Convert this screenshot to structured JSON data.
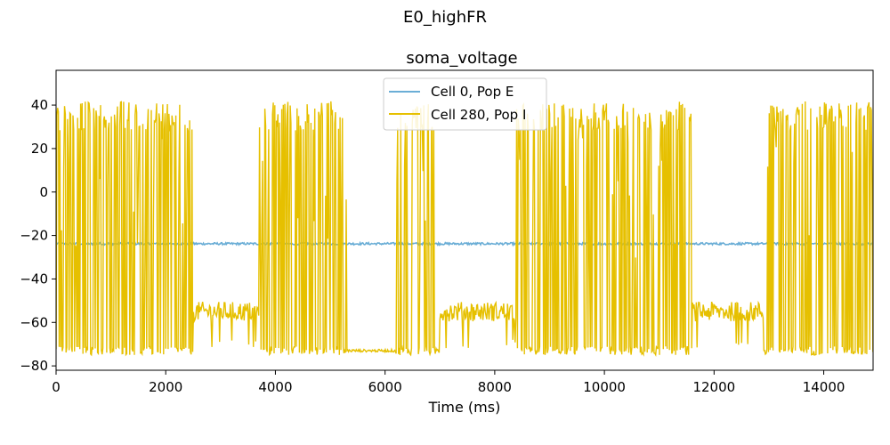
{
  "figure": {
    "suptitle": "E0_highFR"
  },
  "chart_data": {
    "type": "line",
    "title": "soma_voltage",
    "xlabel": "Time (ms)",
    "ylabel": "",
    "xlim": [
      0,
      14900
    ],
    "ylim": [
      -82,
      56
    ],
    "xticks": [
      0,
      2000,
      4000,
      6000,
      8000,
      10000,
      12000,
      14000
    ],
    "xtick_labels": [
      "0",
      "2000",
      "4000",
      "6000",
      "8000",
      "10000",
      "12000",
      "14000"
    ],
    "yticks": [
      -80,
      -60,
      -40,
      -20,
      0,
      20,
      40
    ],
    "ytick_labels": [
      "−80",
      "−60",
      "−40",
      "−20",
      "0",
      "20",
      "40"
    ],
    "grid": false,
    "legend_position": "top-center",
    "series": [
      {
        "name": "Cell 0, Pop E",
        "color": "#6baed6",
        "style": "flat-noisy",
        "mean": -23.8,
        "noise": 0.5,
        "x_range": [
          0,
          14900
        ]
      },
      {
        "name": "Cell 280, Pop I",
        "color": "#e6c000",
        "style": "bursting-spikes",
        "spike_peak": 42,
        "trough": -75,
        "burst_periods": [
          [
            0,
            2500
          ],
          [
            3700,
            5300
          ],
          [
            6200,
            7000
          ],
          [
            8400,
            11600
          ],
          [
            12900,
            14900
          ]
        ],
        "plateau_periods": [
          [
            2500,
            3700
          ],
          [
            7000,
            8400
          ],
          [
            11600,
            12900
          ]
        ],
        "plateau_level": -55,
        "silent_periods": [
          [
            5300,
            6200
          ]
        ],
        "silent_level": -73
      }
    ]
  }
}
